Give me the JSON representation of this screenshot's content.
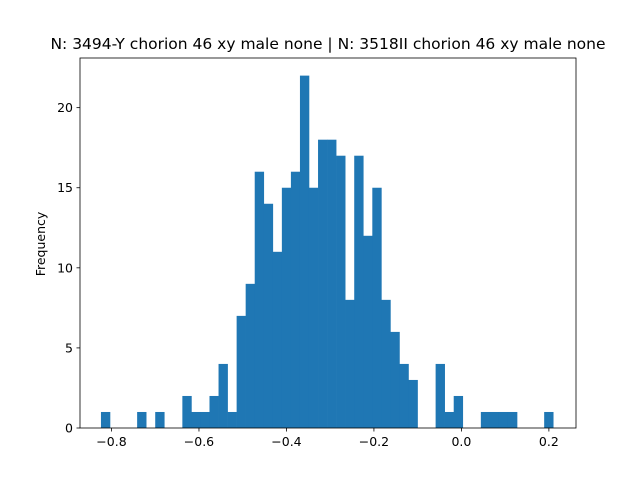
{
  "chart_data": {
    "type": "histogram",
    "title": "N: 3494-Y chorion 46 xy male none | N: 3518II chorion 46 xy male none",
    "xlabel": "",
    "ylabel": "Frequency",
    "xlim": [
      -0.872,
      0.262
    ],
    "ylim": [
      0,
      23.1
    ],
    "bin_start": -0.8241,
    "bin_width": 0.02068,
    "counts": [
      1,
      0,
      0,
      0,
      1,
      0,
      1,
      0,
      0,
      2,
      1,
      1,
      2,
      4,
      1,
      7,
      9,
      16,
      14,
      11,
      15,
      16,
      22,
      15,
      18,
      18,
      17,
      8,
      17,
      12,
      15,
      8,
      6,
      4,
      3,
      0,
      0,
      4,
      1,
      2,
      0,
      0,
      1,
      1,
      1,
      1,
      0,
      0,
      0,
      1
    ],
    "xticks": [
      -0.8,
      -0.6,
      -0.4,
      -0.2,
      0.0,
      0.2
    ],
    "xtick_labels": [
      "−0.8",
      "−0.6",
      "−0.4",
      "−0.2",
      "0.0",
      "0.2"
    ],
    "yticks": [
      0,
      5,
      10,
      15,
      20
    ],
    "ytick_labels": [
      "0",
      "5",
      "10",
      "15",
      "20"
    ],
    "bar_color": "#1f77b4",
    "grid": false
  }
}
